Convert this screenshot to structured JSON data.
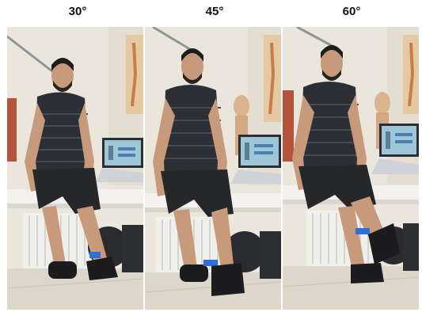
{
  "panels": [
    {
      "label": "30°",
      "angle": 30
    },
    {
      "label": "45°",
      "angle": 45
    },
    {
      "label": "60°",
      "angle": 60
    }
  ],
  "colors": {
    "wall": "#ece8de",
    "floor": "#dcd6cb",
    "skin": "#c79a7c",
    "shirt": "#2c2f36",
    "shorts": "#262729",
    "shoe": "#1c1c1e",
    "laptop": "#cfd3d8",
    "strap": "#2f6fd6"
  }
}
